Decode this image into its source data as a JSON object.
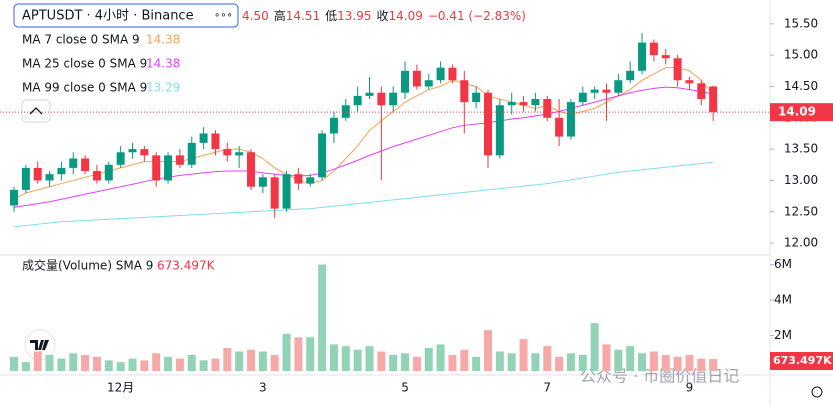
{
  "header": {
    "symbol": "APTUSDT · 4小时 · Binance",
    "menu": "∘∘∘",
    "open_fragment": "4.50",
    "stats": [
      {
        "label": "高",
        "value": "14.51"
      },
      {
        "label": "低",
        "value": "13.95"
      },
      {
        "label": "收",
        "value": "14.09"
      }
    ],
    "change": "−0.41 (−2.83%)",
    "volume_legend": "成交量(Volume) SMA 9",
    "watermark": "公众号 · 币圈价值日记"
  },
  "chart_data": {
    "type": "candlestick",
    "categories": [
      null,
      null,
      null,
      null,
      null,
      null,
      null,
      null,
      null,
      "12月",
      null,
      null,
      null,
      null,
      null,
      null,
      null,
      null,
      null,
      null,
      null,
      "3",
      null,
      null,
      null,
      null,
      null,
      null,
      null,
      null,
      null,
      null,
      null,
      "5",
      null,
      null,
      null,
      null,
      null,
      null,
      null,
      null,
      null,
      null,
      null,
      "7",
      null,
      null,
      null,
      null,
      null,
      null,
      null,
      null,
      null,
      null,
      null,
      "9",
      null,
      null
    ],
    "open": [
      12.6,
      12.85,
      13.2,
      13.0,
      13.1,
      13.2,
      13.35,
      13.15,
      13.0,
      13.25,
      13.45,
      13.5,
      13.4,
      13.0,
      13.4,
      13.25,
      13.6,
      13.75,
      13.5,
      13.4,
      13.45,
      12.9,
      13.05,
      12.55,
      13.1,
      12.95,
      13.05,
      13.75,
      14.0,
      14.2,
      14.35,
      14.4,
      14.2,
      14.4,
      14.75,
      14.5,
      14.6,
      14.8,
      14.6,
      14.25,
      14.4,
      13.4,
      14.2,
      14.25,
      14.2,
      14.3,
      14.0,
      13.7,
      14.25,
      14.4,
      14.45,
      14.4,
      14.6,
      14.75,
      15.2,
      15.0,
      14.95,
      14.6,
      14.55,
      14.5
    ],
    "high": [
      12.9,
      13.25,
      13.3,
      13.15,
      13.3,
      13.45,
      13.4,
      13.25,
      13.3,
      13.55,
      13.6,
      13.55,
      13.45,
      13.45,
      13.5,
      13.7,
      13.85,
      13.8,
      13.6,
      13.55,
      13.5,
      13.1,
      13.1,
      13.15,
      13.2,
      13.1,
      13.8,
      14.1,
      14.3,
      14.5,
      14.65,
      14.5,
      14.5,
      14.9,
      14.85,
      14.7,
      14.9,
      14.85,
      14.75,
      14.5,
      14.45,
      14.3,
      14.4,
      14.35,
      14.4,
      14.35,
      14.3,
      14.3,
      14.5,
      14.5,
      14.55,
      14.7,
      14.9,
      15.35,
      15.25,
      15.1,
      15.0,
      14.65,
      14.6,
      14.51
    ],
    "low": [
      12.5,
      12.8,
      12.95,
      12.9,
      13.0,
      13.1,
      13.1,
      12.95,
      12.95,
      13.2,
      13.35,
      13.3,
      12.9,
      12.95,
      13.2,
      13.2,
      13.5,
      13.4,
      13.3,
      13.2,
      12.85,
      12.8,
      12.4,
      12.5,
      12.85,
      12.9,
      13.0,
      13.6,
      13.95,
      14.1,
      14.3,
      13.0,
      14.1,
      14.3,
      14.45,
      14.45,
      14.55,
      14.55,
      13.75,
      14.15,
      13.2,
      13.35,
      14.05,
      14.1,
      14.1,
      13.95,
      13.55,
      13.65,
      14.2,
      14.3,
      13.95,
      14.35,
      14.55,
      14.7,
      14.9,
      14.85,
      14.5,
      14.45,
      14.2,
      13.95
    ],
    "close": [
      12.85,
      13.2,
      13.0,
      13.1,
      13.2,
      13.35,
      13.15,
      13.0,
      13.25,
      13.45,
      13.5,
      13.4,
      13.0,
      13.4,
      13.25,
      13.6,
      13.75,
      13.5,
      13.4,
      13.45,
      12.9,
      13.05,
      12.55,
      13.1,
      12.95,
      13.05,
      13.75,
      14.0,
      14.2,
      14.35,
      14.4,
      14.2,
      14.4,
      14.75,
      14.5,
      14.6,
      14.8,
      14.6,
      14.25,
      14.4,
      13.4,
      14.2,
      14.25,
      14.2,
      14.3,
      14.0,
      13.7,
      14.25,
      14.4,
      14.45,
      14.4,
      14.6,
      14.75,
      15.2,
      15.0,
      14.95,
      14.6,
      14.55,
      14.3,
      14.09
    ],
    "volume": [
      800000,
      500000,
      1100000,
      900000,
      700000,
      1000000,
      900000,
      800000,
      600000,
      500000,
      700000,
      600000,
      1000000,
      800000,
      700000,
      900000,
      600000,
      700000,
      1300000,
      1100000,
      1200000,
      1100000,
      900000,
      2100000,
      1900000,
      1900000,
      6000000,
      1500000,
      1400000,
      1200000,
      1400000,
      1100000,
      900000,
      1000000,
      800000,
      1300000,
      1500000,
      900000,
      1200000,
      800000,
      2300000,
      1100000,
      1000000,
      1800000,
      1000000,
      1400000,
      800000,
      1000000,
      900000,
      2700000,
      1500000,
      1200000,
      1400000,
      1000000,
      1100000,
      900000,
      800000,
      900000,
      700000,
      673497
    ],
    "volume_last_label": "673.497K",
    "ma_lines": [
      {
        "name": "MA 7 close 0 SMA 9",
        "color": "#f7a350",
        "values": [
          12.7,
          12.8,
          12.85,
          12.9,
          12.95,
          13.0,
          13.05,
          13.1,
          13.15,
          13.2,
          13.25,
          13.3,
          13.3,
          13.3,
          13.3,
          13.35,
          13.4,
          13.45,
          13.5,
          13.5,
          13.45,
          13.35,
          13.2,
          13.1,
          13.0,
          12.95,
          13.0,
          13.15,
          13.35,
          13.55,
          13.8,
          13.95,
          14.1,
          14.25,
          14.35,
          14.45,
          14.5,
          14.6,
          14.55,
          14.5,
          14.35,
          14.3,
          14.25,
          14.2,
          14.15,
          14.2,
          14.1,
          14.05,
          14.1,
          14.15,
          14.25,
          14.35,
          14.45,
          14.6,
          14.7,
          14.8,
          14.8,
          14.75,
          14.6,
          14.38
        ]
      },
      {
        "name": "MA 25 close 0 SMA 9",
        "color": "#e040fb",
        "values": [
          12.57,
          12.6,
          12.63,
          12.66,
          12.7,
          12.74,
          12.78,
          12.82,
          12.86,
          12.9,
          12.94,
          12.98,
          13.02,
          13.05,
          13.08,
          13.1,
          13.12,
          13.14,
          13.15,
          13.15,
          13.15,
          13.12,
          13.1,
          13.08,
          13.07,
          13.08,
          13.12,
          13.18,
          13.25,
          13.32,
          13.4,
          13.47,
          13.54,
          13.6,
          13.66,
          13.72,
          13.78,
          13.84,
          13.88,
          13.9,
          13.92,
          13.95,
          13.98,
          14.0,
          14.03,
          14.06,
          14.1,
          14.15,
          14.2,
          14.25,
          14.3,
          14.35,
          14.4,
          14.44,
          14.47,
          14.49,
          14.48,
          14.45,
          14.42,
          14.38
        ]
      },
      {
        "name": "MA 99 close 0 SMA 9",
        "color": "#7fdfee",
        "values": [
          12.26,
          12.28,
          12.3,
          12.32,
          12.34,
          12.35,
          12.36,
          12.37,
          12.38,
          12.39,
          12.4,
          12.41,
          12.42,
          12.43,
          12.44,
          12.45,
          12.46,
          12.47,
          12.48,
          12.49,
          12.5,
          12.51,
          12.52,
          12.53,
          12.54,
          12.55,
          12.57,
          12.59,
          12.61,
          12.63,
          12.65,
          12.67,
          12.69,
          12.71,
          12.73,
          12.75,
          12.77,
          12.79,
          12.81,
          12.83,
          12.85,
          12.87,
          12.89,
          12.91,
          12.93,
          12.95,
          12.98,
          13.01,
          13.04,
          13.07,
          13.1,
          13.13,
          13.15,
          13.17,
          13.19,
          13.21,
          13.23,
          13.25,
          13.27,
          13.29
        ]
      }
    ],
    "up_color": "#089981",
    "down_color": "#f23645",
    "up_volume_color": "#92d2b5",
    "down_volume_color": "#f7a9a7",
    "ylim": [
      11.81,
      15.88
    ],
    "yticks": [
      {
        "value": 15.5,
        "label": "15.50"
      },
      {
        "value": 15,
        "label": "15.00"
      },
      {
        "value": 14.5,
        "label": "14.50"
      },
      {
        "value": 14,
        "label": "14.00"
      },
      {
        "value": 13.5,
        "label": "13.50"
      },
      {
        "value": 13,
        "label": "13.00"
      },
      {
        "value": 12.5,
        "label": "12.50"
      },
      {
        "value": 12,
        "label": "12.00"
      }
    ],
    "volume_ylim": [
      0,
      6540000
    ],
    "volume_ticks": [
      {
        "value": 6000000,
        "label": "6M"
      },
      {
        "value": 4000000,
        "label": "4M"
      },
      {
        "value": 2000000,
        "label": "2M"
      }
    ]
  }
}
